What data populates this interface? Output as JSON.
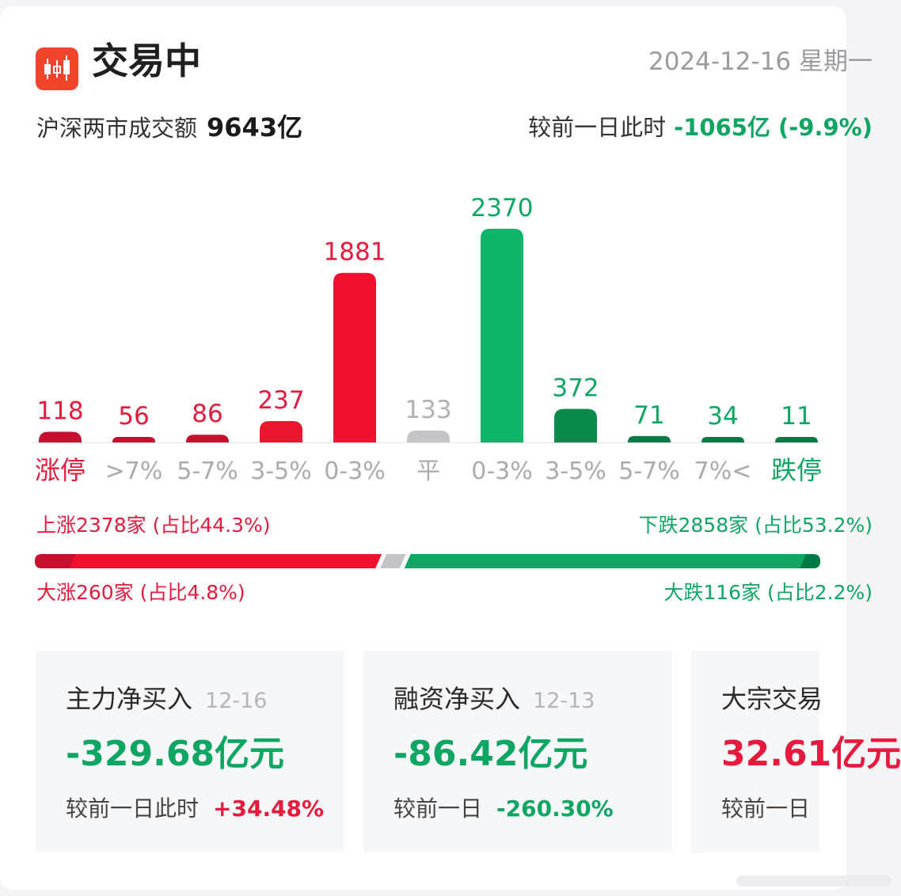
{
  "header": {
    "title": "交易中",
    "date": "2024-12-16 星期一",
    "turnover_label": "沪深两市成交额",
    "turnover_value": "9643亿",
    "compare_label": "较前一日此时",
    "compare_value": "-1065亿 (-9.9%)"
  },
  "colors": {
    "up_strong": "#c8102e",
    "up": "#f0112e",
    "flat": "#c4c4c8",
    "down": "#0fa563",
    "down_strong": "#007a44",
    "up_text": "#e61a3c",
    "down_text": "#0fa563"
  },
  "chart_data": {
    "type": "bar",
    "title": "",
    "categories": [
      "涨停",
      ">7%",
      "5-7%",
      "3-5%",
      "0-3%",
      "平",
      "0-3%",
      "3-5%",
      "5-7%",
      "7%<",
      "跌停"
    ],
    "values": [
      118,
      56,
      86,
      237,
      1881,
      133,
      2370,
      372,
      71,
      34,
      11
    ],
    "series_colors": [
      "#c8102e",
      "#c8102e",
      "#c8102e",
      "#e8172f",
      "#f0112e",
      "#c4c4c8",
      "#0fb66a",
      "#0a8a4c",
      "#0a7a44",
      "#0a7a44",
      "#0a7a44"
    ],
    "category_label_colors": [
      "#e61a3c",
      "#aaaaaf",
      "#aaaaaf",
      "#aaaaaf",
      "#aaaaaf",
      "#aaaaaf",
      "#aaaaaf",
      "#aaaaaf",
      "#aaaaaf",
      "#aaaaaf",
      "#0fa563"
    ],
    "value_label_colors": [
      "#e61a3c",
      "#e61a3c",
      "#e61a3c",
      "#e61a3c",
      "#e61a3c",
      "#b0b0b5",
      "#0fa563",
      "#0fa563",
      "#0fa563",
      "#0fa563",
      "#0fa563"
    ],
    "ylim": [
      0,
      2370
    ],
    "grid": false,
    "legend": "none"
  },
  "breadth": {
    "up_label": "上涨2378家 (占比44.3%)",
    "down_label": "下跌2858家 (占比53.2%)",
    "big_up_label": "大涨260家 (占比4.8%)",
    "big_down_label": "大跌116家 (占比2.2%)",
    "up_share": 0.443,
    "flat_share": 0.025,
    "down_share": 0.532,
    "big_up_share": 0.048,
    "big_down_share": 0.022
  },
  "stats": [
    {
      "title": "主力净买入",
      "date": "12-16",
      "value": "-329.68亿元",
      "foot_label": "较前一日此时",
      "change": "+34.48%",
      "value_color": "#0fa563",
      "change_color": "#e61a3c"
    },
    {
      "title": "融资净买入",
      "date": "12-13",
      "value": "-86.42亿元",
      "foot_label": "较前一日",
      "change": "-260.30%",
      "value_color": "#0fa563",
      "change_color": "#0fa563"
    },
    {
      "title": "大宗交易",
      "date": "",
      "value": "32.61亿元",
      "foot_label": "较前一日",
      "change": "",
      "value_color": "#e61a3c",
      "change_color": "#e61a3c"
    }
  ]
}
